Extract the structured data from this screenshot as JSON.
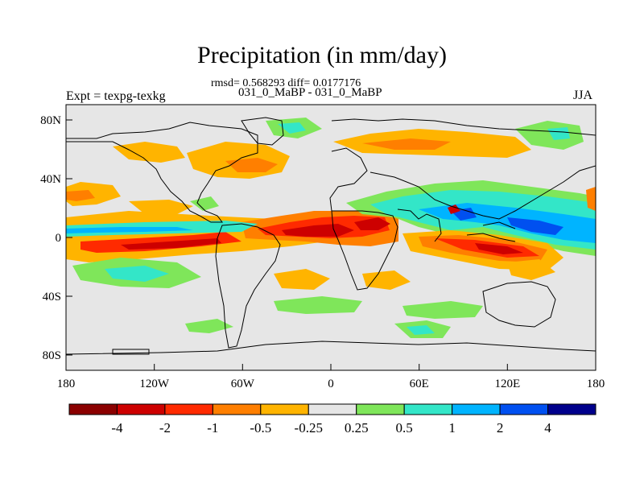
{
  "title": "Precipitation (in mm/day)",
  "stats_line": "rmsd= 0.568293 diff= 0.0177176",
  "subtitle": "031_0_MaBP - 031_0_MaBP",
  "left_label": "Expt = texpg-texkg",
  "right_label": "JJA",
  "lat_ticks": [
    "80N",
    "40N",
    "0",
    "40S",
    "80S"
  ],
  "lon_ticks": [
    "180",
    "120W",
    "60W",
    "0",
    "60E",
    "120E",
    "180"
  ],
  "colorbar": {
    "colors": [
      "#8b0000",
      "#cd0000",
      "#ff2a00",
      "#ff7f00",
      "#ffb400",
      "#e6e6e6",
      "#7fe65a",
      "#33e6c8",
      "#00b4ff",
      "#0050f0",
      "#00008c"
    ],
    "labels": [
      "-4",
      "-2",
      "-1",
      "-0.5",
      "-0.25",
      "0.25",
      "0.5",
      "1",
      "2",
      "4"
    ]
  }
}
